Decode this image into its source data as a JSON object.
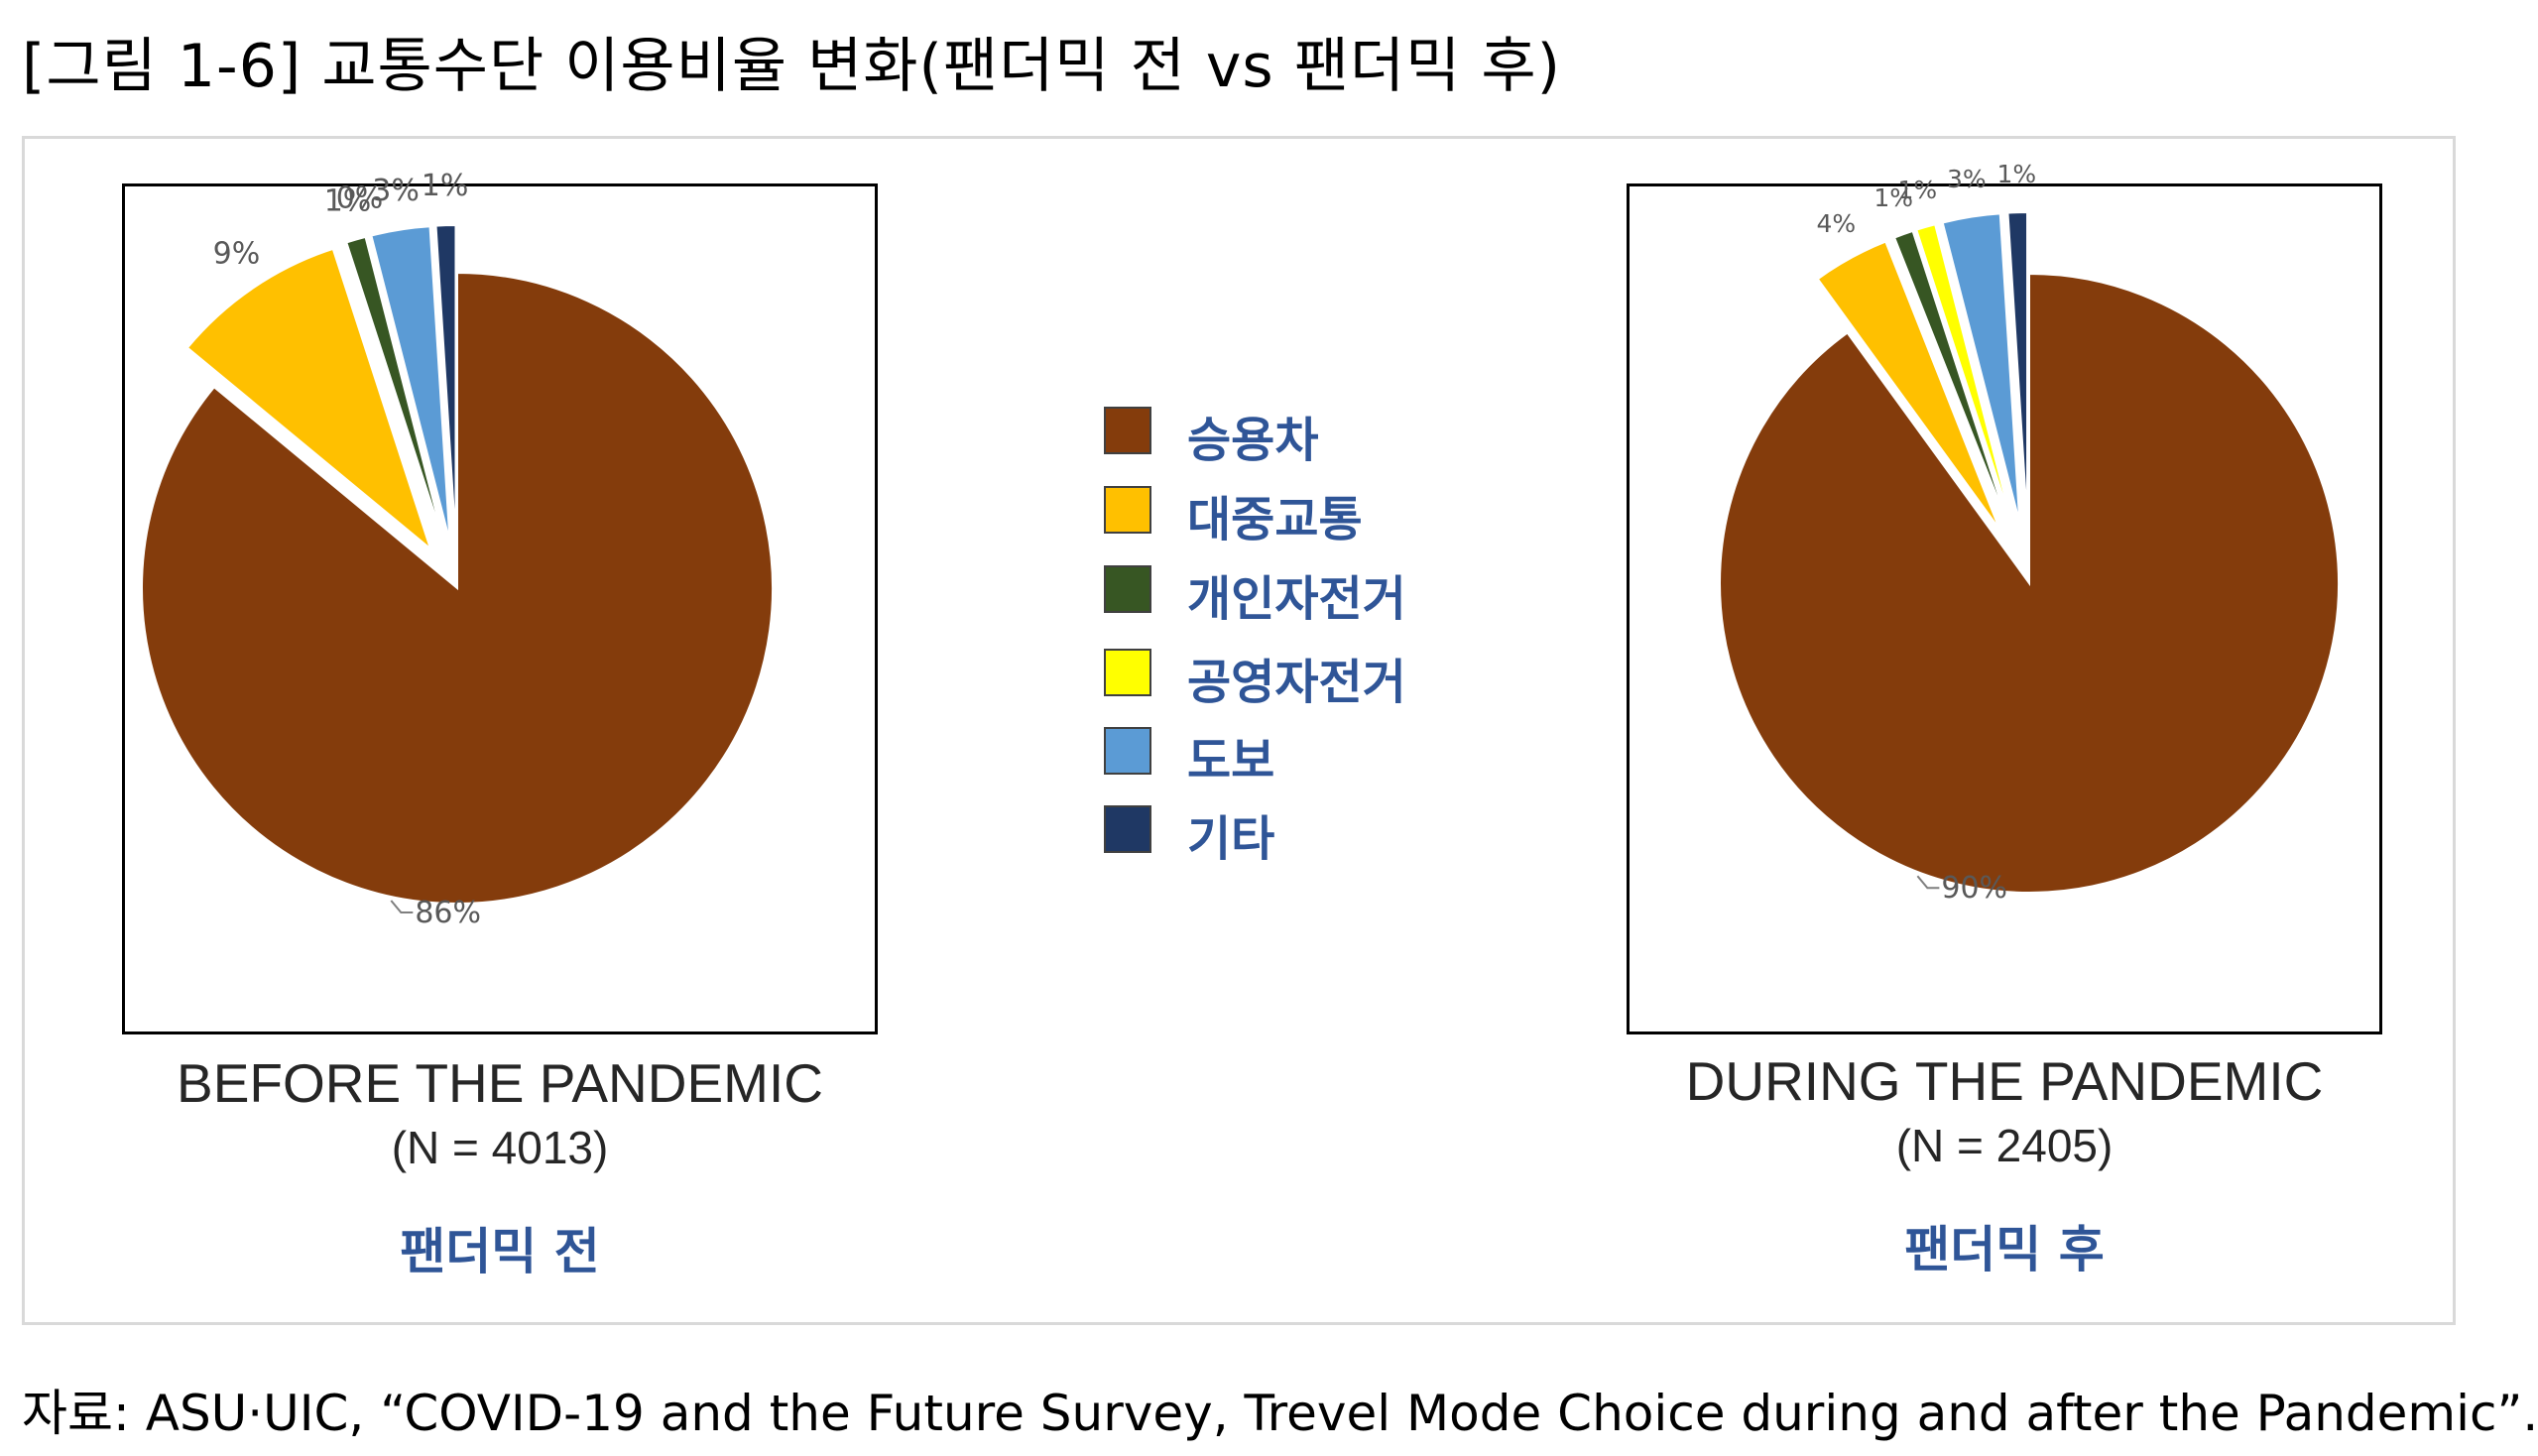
{
  "figure": {
    "title": "[그림 1-6] 교통수단 이용비율 변화(팬더믹 전 vs 팬더믹 후)",
    "source": "자료: ASU·UIC, “COVID-19 and the Future Survey, Trevel Mode Choice during and after the Pandemic”."
  },
  "legend": {
    "items": [
      {
        "label": "승용차",
        "color": "#843c0c"
      },
      {
        "label": "대중교통",
        "color": "#ffc000"
      },
      {
        "label": "개인자전거",
        "color": "#375623"
      },
      {
        "label": "공영자전거",
        "color": "#ffff00"
      },
      {
        "label": "도보",
        "color": "#5b9bd5"
      },
      {
        "label": "기타",
        "color": "#1f3864"
      }
    ]
  },
  "chart_data": [
    {
      "type": "pie",
      "title": "BEFORE THE PANDEMIC",
      "subtitle": "(N = 4013)",
      "caption": "팬더믹 전",
      "categories": [
        "승용차",
        "대중교통",
        "개인자전거",
        "공영자전거",
        "도보",
        "기타"
      ],
      "values": [
        86,
        9,
        1,
        0,
        3,
        1
      ],
      "data_labels": [
        "86%",
        "9%",
        "1%",
        "0%",
        "3%",
        "1%"
      ],
      "colors": [
        "#843c0c",
        "#ffc000",
        "#375623",
        "#ffff00",
        "#5b9bd5",
        "#1f3864"
      ],
      "exploded": true
    },
    {
      "type": "pie",
      "title": "DURING THE PANDEMIC",
      "subtitle": "(N = 2405)",
      "caption": "팬더믹 후",
      "categories": [
        "승용차",
        "대중교통",
        "개인자전거",
        "공영자전거",
        "도보",
        "기타"
      ],
      "values": [
        90,
        4,
        1,
        1,
        3,
        1
      ],
      "data_labels": [
        "90%",
        "4%",
        "1%",
        "1%",
        "3%",
        "1%"
      ],
      "colors": [
        "#843c0c",
        "#ffc000",
        "#375623",
        "#ffff00",
        "#5b9bd5",
        "#1f3864"
      ],
      "exploded": true
    }
  ]
}
